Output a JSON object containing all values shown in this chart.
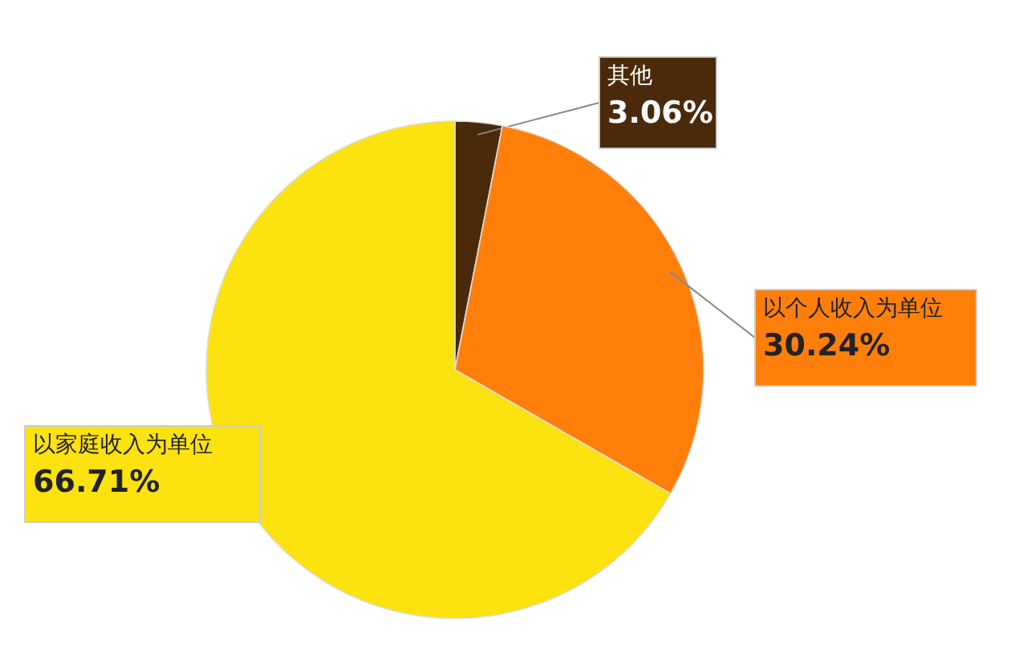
{
  "chart_data": {
    "type": "pie",
    "categories": [
      "其他",
      "以个人收入为单位",
      "以家庭收入为单位"
    ],
    "values": [
      3.06,
      30.24,
      66.71
    ],
    "colors": [
      "#4a2a0a",
      "#ff7f0a",
      "#fce20e"
    ],
    "value_labels": [
      "3.06%",
      "30.24%",
      "66.71%"
    ]
  }
}
